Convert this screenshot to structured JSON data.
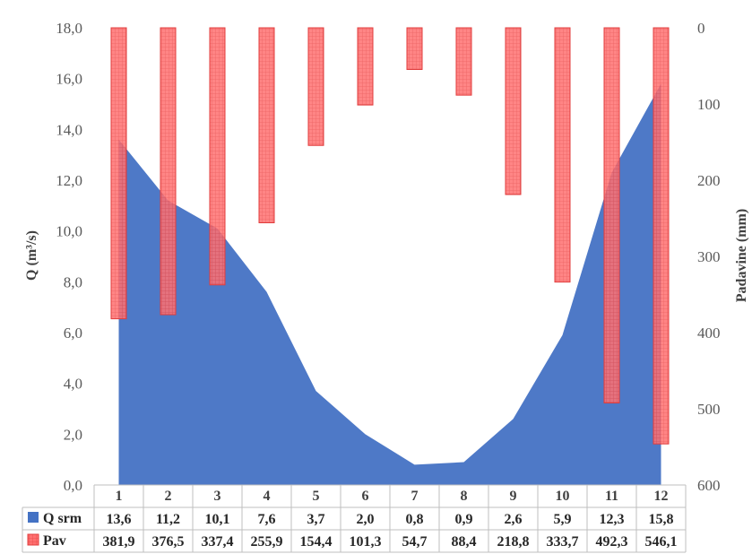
{
  "chart_data": {
    "type": "area+bar",
    "categories": [
      "1",
      "2",
      "3",
      "4",
      "5",
      "6",
      "7",
      "8",
      "9",
      "10",
      "11",
      "12"
    ],
    "series": [
      {
        "name": "Q srm",
        "type": "area",
        "axis": "left",
        "color": "#4472C4",
        "values": [
          13.6,
          11.2,
          10.1,
          7.6,
          3.7,
          2.0,
          0.8,
          0.9,
          2.6,
          5.9,
          12.3,
          15.8
        ]
      },
      {
        "name": "Pav",
        "type": "bar",
        "axis": "right",
        "color": "#FF6666",
        "pattern": "grid",
        "values": [
          381.9,
          376.5,
          337.4,
          255.9,
          154.4,
          101.3,
          54.7,
          88.4,
          218.8,
          333.7,
          492.3,
          546.1
        ]
      }
    ],
    "value_labels": {
      "Q srm": [
        "13,6",
        "11,2",
        "10,1",
        "7,6",
        "3,7",
        "2,0",
        "0,8",
        "0,9",
        "2,6",
        "5,9",
        "12,3",
        "15,8"
      ],
      "Pav": [
        "381,9",
        "376,5",
        "337,4",
        "255,9",
        "154,4",
        "101,3",
        "54,7",
        "88,4",
        "218,8",
        "333,7",
        "492,3",
        "546,1"
      ]
    },
    "ylabel_left": "Q (m³/s)",
    "ylabel_right": "Padavine (mm)",
    "ylim_left": [
      0,
      18
    ],
    "ylim_right": [
      0,
      600
    ],
    "right_axis_reversed": true,
    "left_ticks": [
      "0,0",
      "2,0",
      "4,0",
      "6,0",
      "8,0",
      "10,0",
      "12,0",
      "14,0",
      "16,0",
      "18,0"
    ],
    "right_ticks": [
      "0",
      "100",
      "200",
      "300",
      "400",
      "500",
      "600"
    ],
    "grid": false,
    "legend": "data-table-bottom"
  }
}
